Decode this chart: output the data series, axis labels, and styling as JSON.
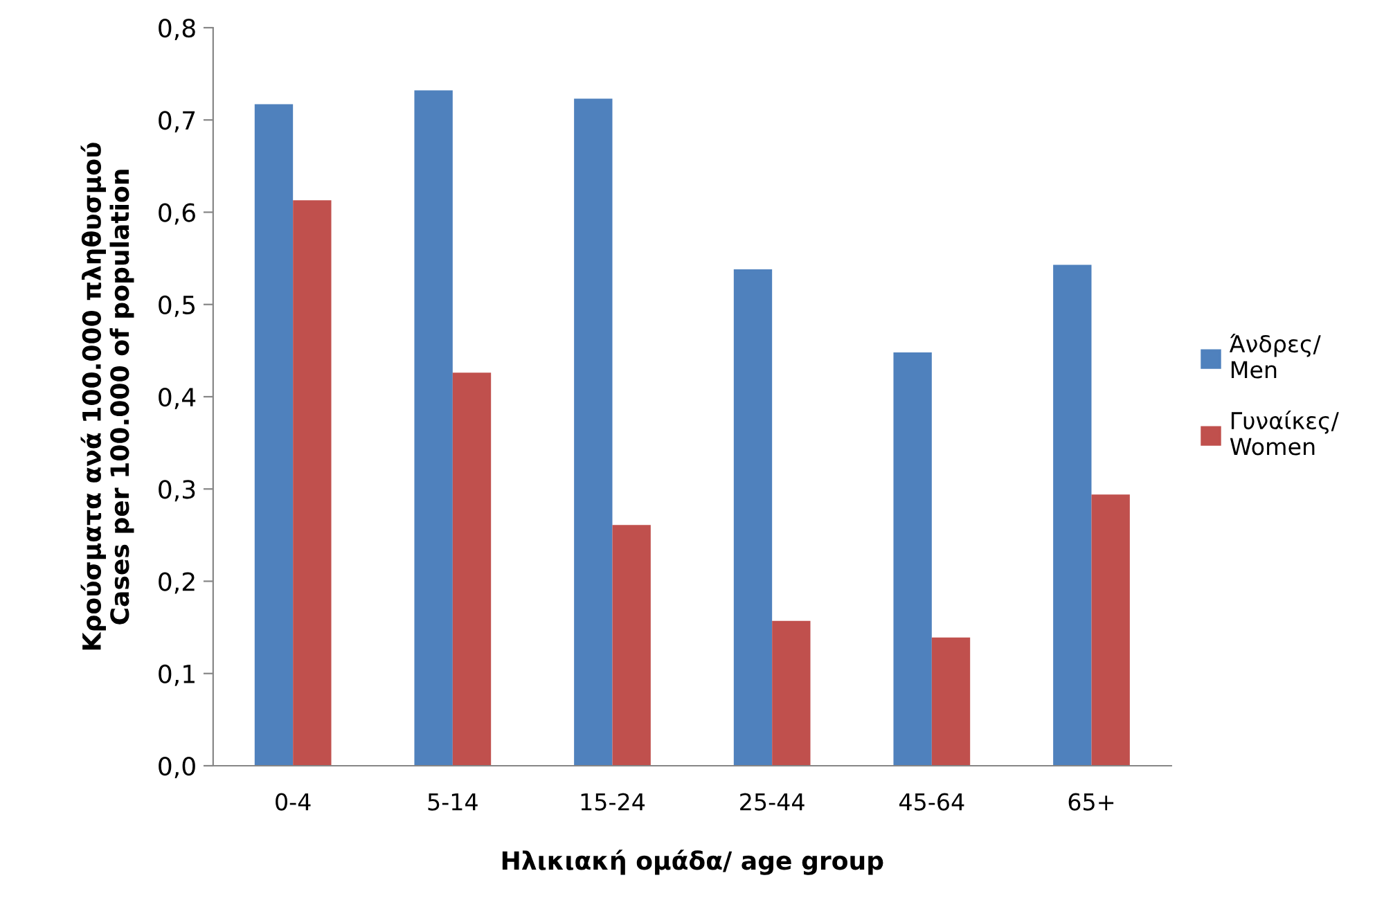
{
  "chart_data": {
    "type": "bar",
    "xlabel": "Ηλικιακή ομάδα/ age group",
    "ylabel": "Κρούσματα ανά 100.000 πληθυσμού\nCases per 100.000 of population",
    "categories": [
      "0-4",
      "5-14",
      "15-24",
      "25-44",
      "45-64",
      "65+"
    ],
    "series": [
      {
        "name": "Άνδρες/\nMen",
        "color": "#4f81bd",
        "values": [
          0.717,
          0.732,
          0.723,
          0.538,
          0.448,
          0.543
        ]
      },
      {
        "name": "Γυναίκες/\nWomen",
        "color": "#c0504d",
        "values": [
          0.613,
          0.426,
          0.261,
          0.157,
          0.139,
          0.294
        ]
      }
    ],
    "ylim": [
      0,
      0.8
    ],
    "yticks": [
      {
        "value": 0,
        "label": "0,0"
      },
      {
        "value": 0.1,
        "label": "0,1"
      },
      {
        "value": 0.2,
        "label": "0,2"
      },
      {
        "value": 0.3,
        "label": "0,3"
      },
      {
        "value": 0.4,
        "label": "0,4"
      },
      {
        "value": 0.5,
        "label": "0,5"
      },
      {
        "value": 0.6,
        "label": "0,6"
      },
      {
        "value": 0.7,
        "label": "0,7"
      },
      {
        "value": 0.8,
        "label": "0,8"
      }
    ],
    "grid": false,
    "legend": "right"
  }
}
